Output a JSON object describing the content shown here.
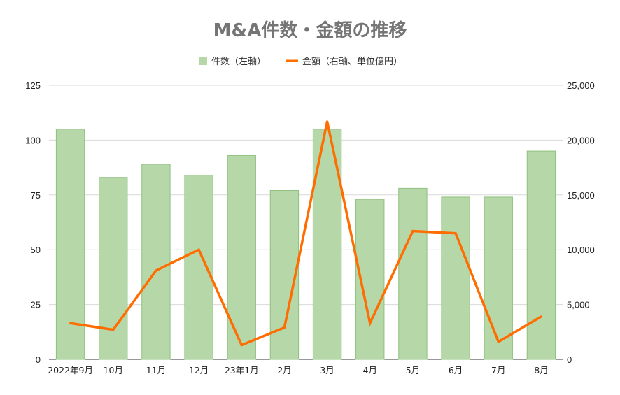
{
  "chart_data": {
    "type": "bar",
    "title": "M&A件数・金額の推移",
    "categories": [
      "2022年9月",
      "10月",
      "11月",
      "12月",
      "23年1月",
      "2月",
      "3月",
      "4月",
      "5月",
      "6月",
      "7月",
      "8月"
    ],
    "series": [
      {
        "name": "件数（左軸）",
        "type": "bar",
        "axis": "left",
        "color": "#b6d7a8",
        "values": [
          105,
          83,
          89,
          84,
          93,
          77,
          105,
          73,
          78,
          74,
          74,
          95
        ]
      },
      {
        "name": "金額（右軸、単位億円）",
        "type": "line",
        "axis": "right",
        "color": "#ff6d01",
        "values": [
          3300,
          2700,
          8100,
          10000,
          1300,
          2900,
          21700,
          3300,
          11700,
          11500,
          1600,
          3900
        ]
      }
    ],
    "y_left": {
      "ylim": [
        0,
        125
      ],
      "ticks": [
        "0",
        "25",
        "50",
        "75",
        "100",
        "125"
      ]
    },
    "y_right": {
      "ylim": [
        0,
        25000
      ],
      "ticks": [
        "0",
        "5,000",
        "10,000",
        "15,000",
        "20,000",
        "25,000"
      ]
    },
    "legend_position": "top-center",
    "grid": true
  }
}
